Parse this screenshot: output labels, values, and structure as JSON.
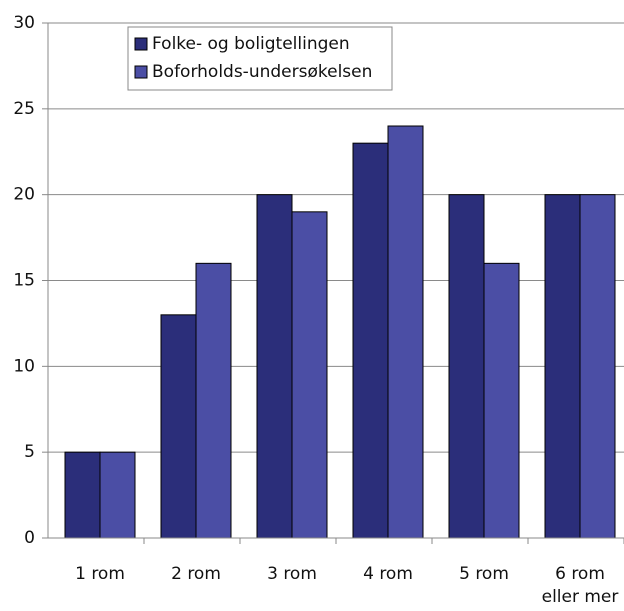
{
  "chart_data": {
    "type": "bar",
    "categories": [
      "1 rom",
      "2 rom",
      "3 rom",
      "4 rom",
      "5 rom",
      "6 rom\neller mer"
    ],
    "series": [
      {
        "name": "Folke- og boligtellingen",
        "color": "#2b2e7a",
        "values": [
          5,
          13,
          20,
          23,
          20,
          20
        ]
      },
      {
        "name": "Boforholds-undersøkelsen",
        "color": "#4b4ea5",
        "values": [
          5,
          16,
          19,
          24,
          16,
          20
        ]
      }
    ],
    "ylim": [
      0,
      30
    ],
    "yticks": [
      0,
      5,
      10,
      15,
      20,
      25,
      30
    ],
    "grid": true
  }
}
